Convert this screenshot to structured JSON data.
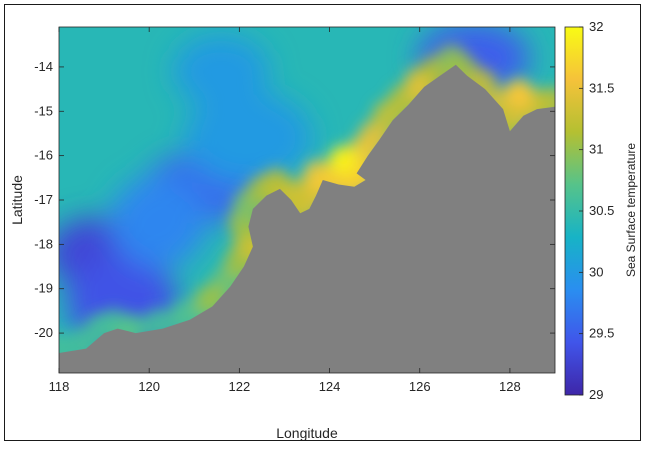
{
  "chart_data": {
    "type": "heatmap",
    "title": "",
    "xlabel": "Longitude",
    "ylabel": "Latitude",
    "xlim": [
      118,
      129
    ],
    "ylim": [
      -20.9,
      -13.1
    ],
    "xticks": [
      118,
      120,
      122,
      124,
      126,
      128
    ],
    "yticks": [
      -14,
      -15,
      -16,
      -17,
      -18,
      -19,
      -20
    ],
    "colorbar": {
      "label": "Sea Surface temperature",
      "range": [
        29,
        32
      ],
      "ticks": [
        29,
        29.5,
        30,
        30.5,
        31,
        31.5,
        32
      ],
      "colormap": [
        "#3e26a8",
        "#4055ea",
        "#2a8ef0",
        "#17b3c6",
        "#56c38a",
        "#b4c032",
        "#f5c23a",
        "#f9fb14"
      ]
    },
    "land_color": "#808080",
    "coastline": [
      [
        118.0,
        -20.45
      ],
      [
        118.6,
        -20.35
      ],
      [
        119.0,
        -20.0
      ],
      [
        119.3,
        -19.9
      ],
      [
        119.7,
        -20.0
      ],
      [
        120.3,
        -19.9
      ],
      [
        120.9,
        -19.7
      ],
      [
        121.4,
        -19.4
      ],
      [
        121.8,
        -18.95
      ],
      [
        122.1,
        -18.5
      ],
      [
        122.3,
        -18.05
      ],
      [
        122.2,
        -17.6
      ],
      [
        122.3,
        -17.2
      ],
      [
        122.6,
        -16.9
      ],
      [
        122.9,
        -16.75
      ],
      [
        123.15,
        -17.0
      ],
      [
        123.35,
        -17.3
      ],
      [
        123.55,
        -17.2
      ],
      [
        123.7,
        -16.9
      ],
      [
        123.85,
        -16.55
      ],
      [
        124.2,
        -16.65
      ],
      [
        124.55,
        -16.7
      ],
      [
        124.8,
        -16.55
      ],
      [
        124.6,
        -16.4
      ],
      [
        124.85,
        -16.0
      ],
      [
        125.1,
        -15.65
      ],
      [
        125.4,
        -15.2
      ],
      [
        125.75,
        -14.85
      ],
      [
        126.1,
        -14.45
      ],
      [
        126.45,
        -14.2
      ],
      [
        126.8,
        -13.95
      ],
      [
        127.05,
        -14.2
      ],
      [
        127.45,
        -14.5
      ],
      [
        127.85,
        -14.95
      ],
      [
        128.0,
        -15.45
      ],
      [
        128.3,
        -15.1
      ],
      [
        128.6,
        -14.95
      ],
      [
        129.0,
        -14.9
      ]
    ],
    "warm_spots": [
      {
        "lon": 124.3,
        "lat": -16.1,
        "sst": 31.9
      },
      {
        "lon": 122.4,
        "lat": -18.1,
        "sst": 31.3
      },
      {
        "lon": 128.2,
        "lat": -14.6,
        "sst": 31.6
      },
      {
        "lon": 126.0,
        "lat": -14.5,
        "sst": 31.4
      },
      {
        "lon": 123.3,
        "lat": -16.9,
        "sst": 31.3
      },
      {
        "lon": 121.4,
        "lat": -19.2,
        "sst": 31.0
      },
      {
        "lon": 119.5,
        "lat": -20.0,
        "sst": 30.7
      }
    ],
    "cool_spots": [
      {
        "lon": 118.8,
        "lat": -18.2,
        "sst": 29.3
      },
      {
        "lon": 119.4,
        "lat": -19.3,
        "sst": 29.4
      },
      {
        "lon": 121.3,
        "lat": -16.7,
        "sst": 29.6
      },
      {
        "lon": 120.2,
        "lat": -17.5,
        "sst": 29.8
      },
      {
        "lon": 127.2,
        "lat": -13.8,
        "sst": 29.5
      },
      {
        "lon": 122.2,
        "lat": -15.6,
        "sst": 30.0
      },
      {
        "lon": 121.6,
        "lat": -14.1,
        "sst": 30.0
      }
    ],
    "background_sst": 30.4
  }
}
